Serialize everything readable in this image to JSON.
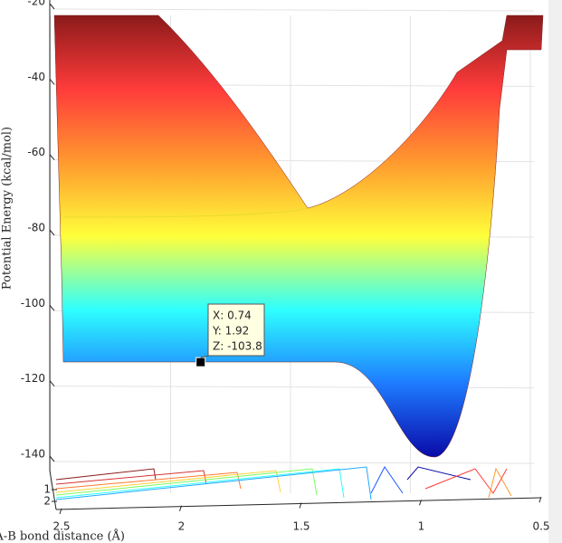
{
  "chart_data": {
    "type": "surface",
    "zlabel": "Potential Energy (kcal/mol)",
    "ylabel": "A-B bond distance (Å)",
    "zlim": [
      -140,
      -20
    ],
    "zticks": [
      -20,
      -40,
      -60,
      -80,
      -100,
      -120,
      -140
    ],
    "ylim": [
      2.5,
      0.5
    ],
    "yticks": [
      2.5,
      2,
      1.5,
      1,
      0.5
    ],
    "xticks": [
      1,
      2
    ],
    "grid": true,
    "colormap": [
      "#8b1a1a",
      "#ff3b3b",
      "#ff9a2e",
      "#ffff3a",
      "#2effff",
      "#1e7bff",
      "#0a0aa8"
    ],
    "datatip": {
      "x": 0.74,
      "y": 1.92,
      "z": -103.8,
      "labels": [
        "X: 0.74",
        "Y: 1.92",
        "Z: -103.8"
      ]
    }
  }
}
